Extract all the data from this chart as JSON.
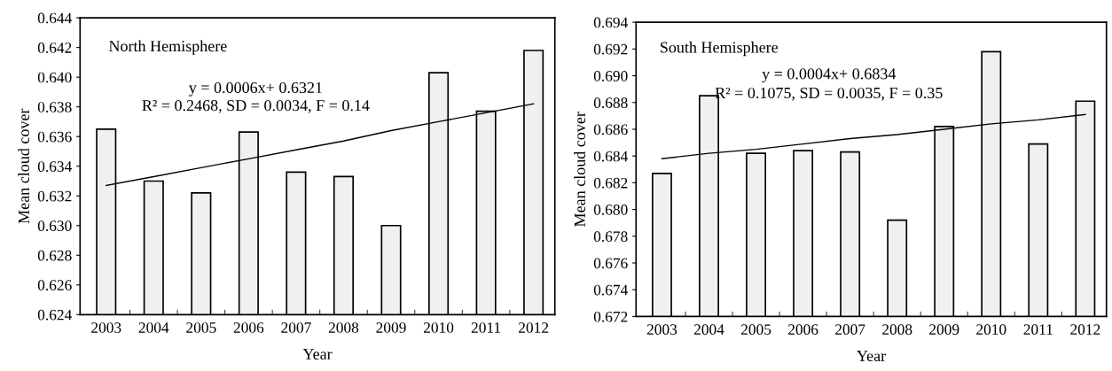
{
  "chart_data": [
    {
      "type": "bar",
      "xlabel": "Year",
      "ylabel": "Mean cloud cover",
      "categories": [
        "2003",
        "2004",
        "2005",
        "2006",
        "2007",
        "2008",
        "2009",
        "2010",
        "2011",
        "2012"
      ],
      "series": [
        {
          "color": "#f0f0f0",
          "values": [
            0.6365,
            0.633,
            0.6322,
            0.6363,
            0.6336,
            0.6333,
            0.63,
            0.6403,
            0.6377,
            0.6418
          ]
        },
        {
          "type": "line",
          "color": "#000000",
          "values": [
            0.6327,
            0.6333,
            0.6339,
            0.6345,
            0.6351,
            0.6357,
            0.6364,
            0.637,
            0.6376,
            0.6382
          ]
        }
      ],
      "ylim": [
        0.624,
        0.644
      ],
      "yticks": [
        0.624,
        0.626,
        0.628,
        {
          "value": 0.63,
          "label": "0.630"
        },
        0.632,
        0.634,
        0.636,
        0.638,
        {
          "value": 0.64,
          "label": "0.640"
        },
        0.642,
        0.644
      ],
      "annotations": [
        "North Hemisphere",
        "y = 0.0006x+ 0.6321",
        "R² = 0.2468, SD = 0.0034, F = 0.14"
      ]
    },
    {
      "type": "bar",
      "xlabel": "Year",
      "ylabel": "Mean cloud cover",
      "categories": [
        "2003",
        "2004",
        "2005",
        "2006",
        "2007",
        "2008",
        "2009",
        "2010",
        "2011",
        "2012"
      ],
      "series": [
        {
          "color": "#f0f0f0",
          "values": [
            0.6827,
            0.6885,
            0.6842,
            0.6844,
            0.6843,
            0.6792,
            0.6862,
            0.6918,
            0.6849,
            0.6881
          ]
        },
        {
          "type": "line",
          "color": "#000000",
          "values": [
            0.6838,
            0.6842,
            0.6845,
            0.6849,
            0.6853,
            0.6856,
            0.686,
            0.6864,
            0.6867,
            0.6871
          ]
        }
      ],
      "ylim": [
        0.672,
        0.694
      ],
      "yticks": [
        0.672,
        0.674,
        0.676,
        0.678,
        {
          "value": 0.68,
          "label": "0.680"
        },
        0.682,
        0.684,
        0.686,
        0.688,
        {
          "value": 0.69,
          "label": "0.690"
        },
        0.692,
        0.694
      ],
      "annotations": [
        "South Hemisphere",
        "y = 0.0004x+ 0.6834",
        "R² = 0.1075, SD = 0.0035, F = 0.35"
      ]
    }
  ]
}
